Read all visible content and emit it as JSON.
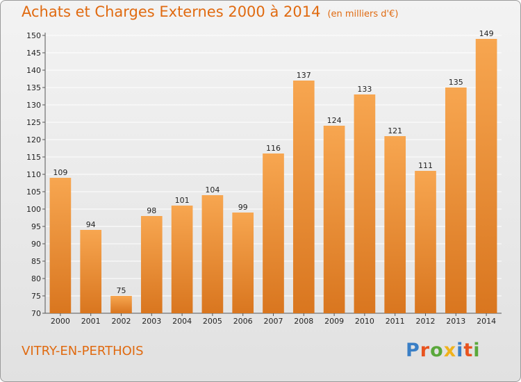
{
  "title": "Achats et Charges Externes 2000 à 2014",
  "subtitle": "(en milliers d'€)",
  "city": "VITRY-EN-PERTHOIS",
  "logo": {
    "text": "Proxiti",
    "letter_colors": [
      "#3a7fc6",
      "#e8531f",
      "#5aa83b",
      "#f0b21c",
      "#3a7fc6",
      "#e8531f",
      "#5aa83b"
    ]
  },
  "colors": {
    "title": "#e06a10",
    "bar_light": "#f7a650",
    "bar_dark": "#d9761f",
    "grid": "#ffffff"
  },
  "chart_data": {
    "type": "bar",
    "categories": [
      "2000",
      "2001",
      "2002",
      "2003",
      "2004",
      "2005",
      "2006",
      "2007",
      "2008",
      "2009",
      "2010",
      "2011",
      "2012",
      "2013",
      "2014"
    ],
    "values": [
      109,
      94,
      75,
      98,
      101,
      104,
      99,
      116,
      137,
      124,
      133,
      121,
      111,
      135,
      149
    ],
    "ylim": [
      70,
      150
    ],
    "yticks": [
      70,
      75,
      80,
      85,
      90,
      95,
      100,
      105,
      110,
      115,
      120,
      125,
      130,
      135,
      140,
      145,
      150
    ],
    "grid": true,
    "xlabel": "",
    "ylabel": ""
  }
}
